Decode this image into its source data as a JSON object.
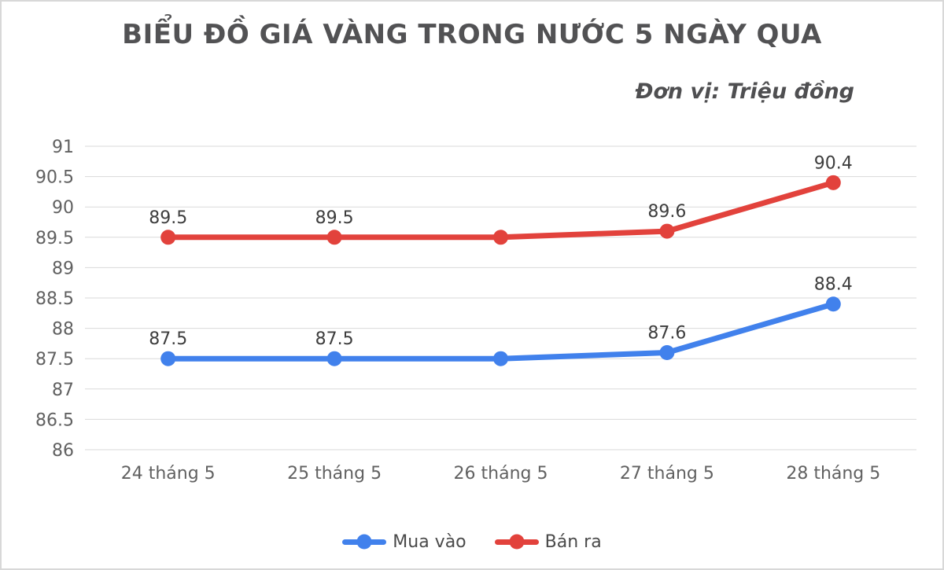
{
  "chart_data": {
    "type": "line",
    "title": "BIỂU ĐỒ GIÁ VÀNG TRONG NƯỚC 5 NGÀY QUA",
    "subtitle": "Đơn vị: Triệu đồng",
    "categories": [
      "24 tháng 5",
      "25 tháng 5",
      "26 tháng 5",
      "27 tháng 5",
      "28 tháng 5"
    ],
    "series": [
      {
        "name": "Mua vào",
        "color": "#4181ec",
        "values": [
          87.5,
          87.5,
          87.5,
          87.6,
          88.4
        ],
        "point_labels": [
          "87.5",
          "87.5",
          "",
          "87.6",
          "88.4"
        ]
      },
      {
        "name": "Bán ra",
        "color": "#e2423c",
        "values": [
          89.5,
          89.5,
          89.5,
          89.6,
          90.4
        ],
        "point_labels": [
          "89.5",
          "89.5",
          "",
          "89.6",
          "90.4"
        ]
      }
    ],
    "xlabel": "",
    "ylabel": "",
    "ylim": [
      86,
      91
    ],
    "y_step": 0.5,
    "grid": true,
    "legend_position": "bottom"
  },
  "style": {
    "grid_color": "#d9d9d9",
    "tick_color": "#616161",
    "data_label_color": "#3d3d3d",
    "title_color": "#525254",
    "subtitle_color": "#4f4f51",
    "legend_text_color": "#4a4a4a",
    "background_color": "#ffffff",
    "border_color": "#d8d8d8"
  }
}
